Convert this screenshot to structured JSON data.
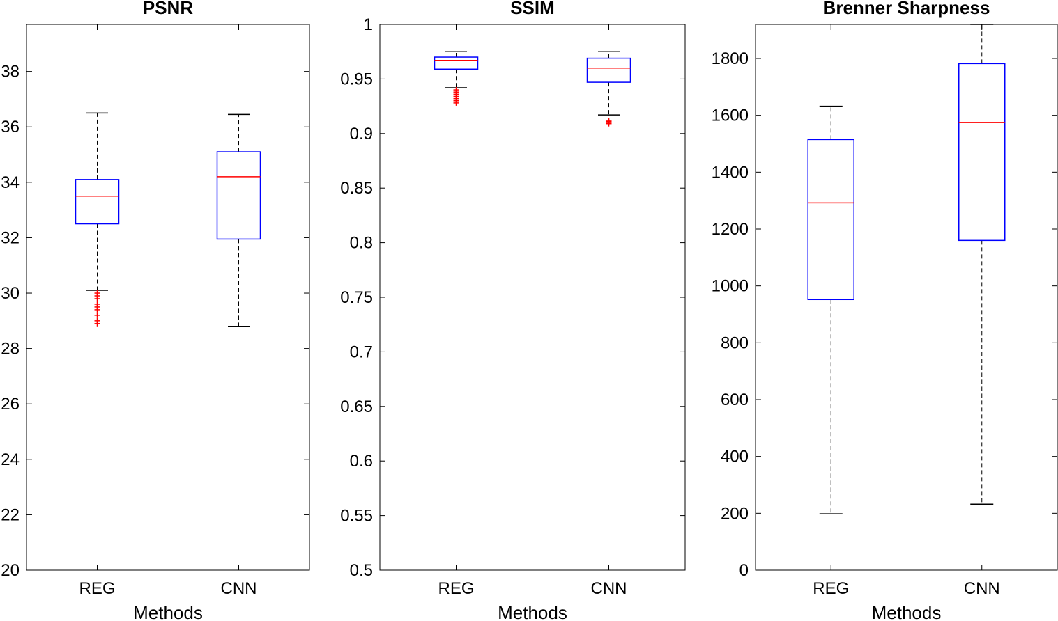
{
  "chart_data": [
    {
      "type": "box",
      "title": "PSNR",
      "xlabel": "Methods",
      "ylabel": "",
      "ylim": [
        20,
        39.7
      ],
      "yticks": [
        "20",
        "22",
        "24",
        "26",
        "28",
        "30",
        "32",
        "34",
        "36",
        "38"
      ],
      "categories": [
        "REG",
        "CNN"
      ],
      "boxes": [
        {
          "name": "REG",
          "whisker_low": 30.1,
          "q1": 32.5,
          "median": 33.5,
          "q3": 34.1,
          "whisker_high": 36.5,
          "outliers": [
            30.0,
            29.9,
            29.8,
            29.6,
            29.5,
            29.4,
            29.2,
            29.0,
            28.9
          ]
        },
        {
          "name": "CNN",
          "whisker_low": 28.8,
          "q1": 31.95,
          "median": 34.2,
          "q3": 35.1,
          "whisker_high": 36.45,
          "outliers": []
        }
      ]
    },
    {
      "type": "box",
      "title": "SSIM",
      "xlabel": "Methods",
      "ylabel": "",
      "ylim": [
        0.5,
        1.0
      ],
      "yticks": [
        "0.5",
        "0.55",
        "0.6",
        "0.65",
        "0.7",
        "0.75",
        "0.8",
        "0.85",
        "0.9",
        "0.95",
        "1"
      ],
      "categories": [
        "REG",
        "CNN"
      ],
      "boxes": [
        {
          "name": "REG",
          "whisker_low": 0.942,
          "q1": 0.959,
          "median": 0.967,
          "q3": 0.97,
          "whisker_high": 0.975,
          "outliers": [
            0.94,
            0.938,
            0.936,
            0.934,
            0.932,
            0.93,
            0.928
          ]
        },
        {
          "name": "CNN",
          "whisker_low": 0.917,
          "q1": 0.947,
          "median": 0.96,
          "q3": 0.969,
          "whisker_high": 0.975,
          "outliers": [
            0.912,
            0.911,
            0.91,
            0.909
          ]
        }
      ]
    },
    {
      "type": "box",
      "title": "Brenner Sharpness",
      "xlabel": "Methods",
      "ylabel": "",
      "ylim": [
        0,
        1920
      ],
      "yticks": [
        "0",
        "200",
        "400",
        "600",
        "800",
        "1000",
        "1200",
        "1400",
        "1600",
        "1800"
      ],
      "categories": [
        "REG",
        "CNN"
      ],
      "boxes": [
        {
          "name": "REG",
          "whisker_low": 198,
          "q1": 952,
          "median": 1292,
          "q3": 1515,
          "whisker_high": 1632,
          "outliers": []
        },
        {
          "name": "CNN",
          "whisker_low": 232,
          "q1": 1160,
          "median": 1575,
          "q3": 1782,
          "whisker_high": 1920,
          "outliers": []
        }
      ]
    }
  ],
  "colors": {
    "box": "#0000ff",
    "median": "#ff0000",
    "outlier": "#ff0000",
    "whisker": "#000000",
    "axes": "#000000"
  }
}
